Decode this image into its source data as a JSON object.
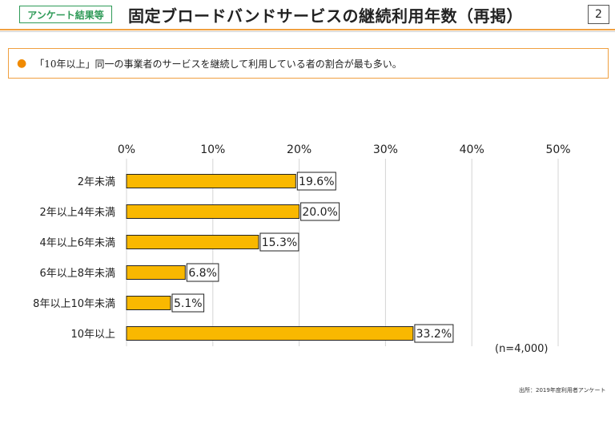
{
  "header": {
    "tag": "アンケート結果等",
    "title": "固定ブロードバンドサービスの継続利用年数（再掲）",
    "page_number": "2"
  },
  "summary": {
    "bullet": "●",
    "text": "「10年以上」同一の事業者のサービスを継続して利用している者の割合が最も多い。"
  },
  "note": "(n=4,000)",
  "source": "出所：2019年度利用者アンケート",
  "colors": {
    "bar": "#f9b800",
    "accent": "#f0a040",
    "tag_green": "#2e9a57"
  },
  "chart_data": {
    "type": "bar",
    "orientation": "horizontal",
    "categories": [
      "2年未満",
      "2年以上4年未満",
      "4年以上6年未満",
      "6年以上8年未満",
      "8年以上10年未満",
      "10年以上"
    ],
    "values": [
      19.6,
      20.0,
      15.3,
      6.8,
      5.1,
      33.2
    ],
    "value_labels": [
      "19.6%",
      "20.0%",
      "15.3%",
      "6.8%",
      "5.1%",
      "33.2%"
    ],
    "ticks": [
      0,
      10,
      20,
      30,
      40,
      50
    ],
    "tick_labels": [
      "0%",
      "10%",
      "20%",
      "30%",
      "40%",
      "50%"
    ],
    "xlim": [
      0,
      50
    ],
    "grid": true,
    "axis_position": "top"
  }
}
